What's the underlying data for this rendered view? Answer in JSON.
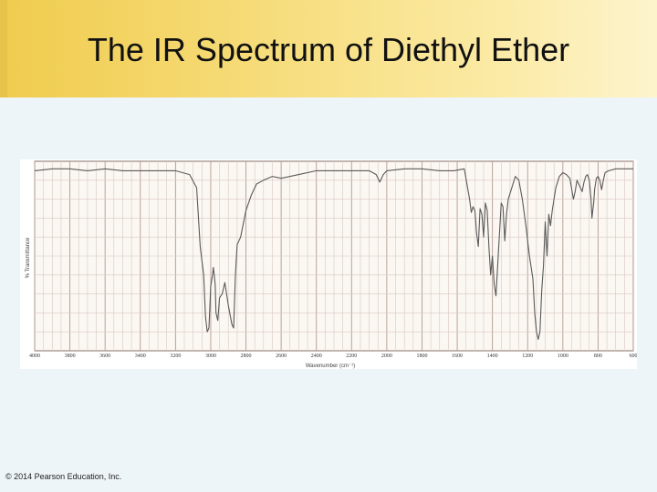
{
  "slide": {
    "title": "The IR Spectrum of Diethyl Ether",
    "copyright": "© 2014 Pearson Education, Inc."
  },
  "colors": {
    "header_gold": "#f0cc4e",
    "header_light": "#fdf4cc",
    "content_bg": "#eef5f8",
    "grid_major": "#b59a92",
    "grid_minor": "#d9c8c2",
    "spectrum_line": "#5a5a5a"
  },
  "chart_data": {
    "type": "line",
    "title": "",
    "xlabel": "Wavenumber (cm⁻¹)",
    "ylabel": "% Transmittance",
    "xlim": [
      4000,
      600
    ],
    "ylim": [
      0,
      100
    ],
    "x_ticks": [
      4000,
      3800,
      3600,
      3400,
      3200,
      3000,
      2800,
      2600,
      2400,
      2200,
      2000,
      1800,
      1600,
      1400,
      1200,
      1000,
      800,
      600
    ],
    "x_tick_labels": [
      "4000",
      "3800",
      "3600",
      "3400",
      "3200",
      "3000",
      "2800",
      "2600",
      "2400",
      "2200",
      "2000",
      "1800",
      "1600",
      "1400",
      "1200",
      "1000",
      "800",
      "600"
    ],
    "grid": true,
    "series": [
      {
        "points": [
          [
            4000,
            95
          ],
          [
            3900,
            96
          ],
          [
            3800,
            96
          ],
          [
            3700,
            95
          ],
          [
            3600,
            96
          ],
          [
            3500,
            95
          ],
          [
            3400,
            95
          ],
          [
            3300,
            95
          ],
          [
            3200,
            95
          ],
          [
            3120,
            93
          ],
          [
            3080,
            86
          ],
          [
            3060,
            55
          ],
          [
            3040,
            40
          ],
          [
            3030,
            18
          ],
          [
            3020,
            10
          ],
          [
            3010,
            12
          ],
          [
            3000,
            34
          ],
          [
            2990,
            40
          ],
          [
            2985,
            44
          ],
          [
            2980,
            40
          ],
          [
            2975,
            35
          ],
          [
            2970,
            20
          ],
          [
            2960,
            16
          ],
          [
            2950,
            28
          ],
          [
            2935,
            30
          ],
          [
            2920,
            36
          ],
          [
            2900,
            24
          ],
          [
            2880,
            14
          ],
          [
            2870,
            12
          ],
          [
            2860,
            40
          ],
          [
            2850,
            56
          ],
          [
            2830,
            60
          ],
          [
            2800,
            74
          ],
          [
            2770,
            82
          ],
          [
            2740,
            88
          ],
          [
            2700,
            90
          ],
          [
            2650,
            92
          ],
          [
            2600,
            91
          ],
          [
            2500,
            93
          ],
          [
            2400,
            95
          ],
          [
            2300,
            95
          ],
          [
            2200,
            95
          ],
          [
            2100,
            95
          ],
          [
            2060,
            93
          ],
          [
            2040,
            89
          ],
          [
            2020,
            93
          ],
          [
            2000,
            95
          ],
          [
            1900,
            96
          ],
          [
            1800,
            96
          ],
          [
            1700,
            95
          ],
          [
            1620,
            95
          ],
          [
            1560,
            96
          ],
          [
            1530,
            80
          ],
          [
            1520,
            73
          ],
          [
            1510,
            76
          ],
          [
            1500,
            74
          ],
          [
            1490,
            62
          ],
          [
            1480,
            55
          ],
          [
            1470,
            75
          ],
          [
            1460,
            72
          ],
          [
            1450,
            60
          ],
          [
            1440,
            78
          ],
          [
            1430,
            74
          ],
          [
            1420,
            55
          ],
          [
            1410,
            40
          ],
          [
            1400,
            50
          ],
          [
            1390,
            35
          ],
          [
            1380,
            29
          ],
          [
            1370,
            45
          ],
          [
            1360,
            62
          ],
          [
            1350,
            78
          ],
          [
            1340,
            76
          ],
          [
            1330,
            58
          ],
          [
            1320,
            72
          ],
          [
            1310,
            80
          ],
          [
            1290,
            86
          ],
          [
            1270,
            92
          ],
          [
            1250,
            90
          ],
          [
            1230,
            80
          ],
          [
            1210,
            66
          ],
          [
            1190,
            50
          ],
          [
            1170,
            38
          ],
          [
            1160,
            20
          ],
          [
            1150,
            10
          ],
          [
            1140,
            6
          ],
          [
            1130,
            10
          ],
          [
            1120,
            32
          ],
          [
            1110,
            45
          ],
          [
            1100,
            68
          ],
          [
            1090,
            50
          ],
          [
            1080,
            72
          ],
          [
            1070,
            66
          ],
          [
            1060,
            74
          ],
          [
            1040,
            86
          ],
          [
            1020,
            92
          ],
          [
            1000,
            94
          ],
          [
            980,
            93
          ],
          [
            960,
            91
          ],
          [
            940,
            80
          ],
          [
            930,
            84
          ],
          [
            920,
            90
          ],
          [
            900,
            86
          ],
          [
            890,
            84
          ],
          [
            880,
            89
          ],
          [
            870,
            92
          ],
          [
            860,
            93
          ],
          [
            850,
            90
          ],
          [
            840,
            80
          ],
          [
            835,
            70
          ],
          [
            830,
            74
          ],
          [
            825,
            78
          ],
          [
            820,
            85
          ],
          [
            810,
            91
          ],
          [
            800,
            92
          ],
          [
            790,
            90
          ],
          [
            780,
            85
          ],
          [
            770,
            90
          ],
          [
            760,
            94
          ],
          [
            740,
            95
          ],
          [
            700,
            96
          ],
          [
            650,
            96
          ],
          [
            600,
            96
          ]
        ]
      }
    ]
  }
}
